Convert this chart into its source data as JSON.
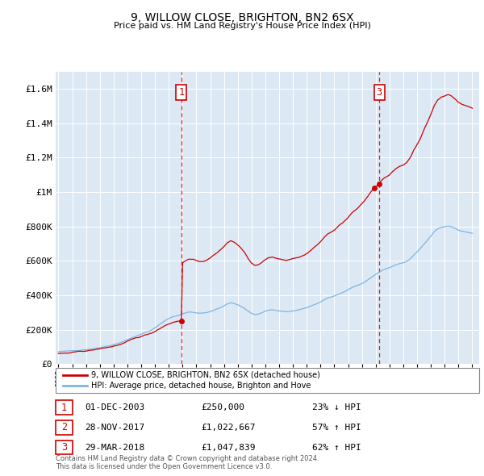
{
  "title": "9, WILLOW CLOSE, BRIGHTON, BN2 6SX",
  "subtitle": "Price paid vs. HM Land Registry's House Price Index (HPI)",
  "background_color": "white",
  "plot_bg_color": "#dce9f5",
  "ylim": [
    0,
    1700000
  ],
  "yticks": [
    0,
    200000,
    400000,
    600000,
    800000,
    1000000,
    1200000,
    1400000,
    1600000
  ],
  "ytick_labels": [
    "£0",
    "£200K",
    "£400K",
    "£600K",
    "£800K",
    "£1M",
    "£1.2M",
    "£1.4M",
    "£1.6M"
  ],
  "hpi_color": "#7eb4e2",
  "price_color": "#cc0000",
  "transaction1_year": 2003.92,
  "transaction1_price": 250000,
  "transaction2_year": 2017.91,
  "transaction2_price": 1022667,
  "transaction3_year": 2018.25,
  "transaction3_price": 1047839,
  "legend_label_price": "9, WILLOW CLOSE, BRIGHTON, BN2 6SX (detached house)",
  "legend_label_hpi": "HPI: Average price, detached house, Brighton and Hove",
  "table_rows": [
    [
      "1",
      "01-DEC-2003",
      "£250,000",
      "23% ↓ HPI"
    ],
    [
      "2",
      "28-NOV-2017",
      "£1,022,667",
      "57% ↑ HPI"
    ],
    [
      "3",
      "29-MAR-2018",
      "£1,047,839",
      "62% ↑ HPI"
    ]
  ],
  "footnote": "Contains HM Land Registry data © Crown copyright and database right 2024.\nThis data is licensed under the Open Government Licence v3.0.",
  "dashed_lines": [
    2003.92,
    2018.25
  ],
  "hpi_base_points": [
    [
      1995.0,
      72000
    ],
    [
      1995.25,
      73500
    ],
    [
      1995.5,
      74000
    ],
    [
      1995.75,
      75000
    ],
    [
      1996.0,
      77000
    ],
    [
      1996.25,
      79000
    ],
    [
      1996.5,
      81000
    ],
    [
      1996.75,
      83000
    ],
    [
      1997.0,
      86000
    ],
    [
      1997.25,
      89000
    ],
    [
      1997.5,
      92000
    ],
    [
      1997.75,
      95000
    ],
    [
      1998.0,
      99000
    ],
    [
      1998.25,
      104000
    ],
    [
      1998.5,
      108000
    ],
    [
      1998.75,
      112000
    ],
    [
      1999.0,
      118000
    ],
    [
      1999.25,
      124000
    ],
    [
      1999.5,
      130000
    ],
    [
      1999.75,
      138000
    ],
    [
      2000.0,
      147000
    ],
    [
      2000.25,
      156000
    ],
    [
      2000.5,
      163000
    ],
    [
      2000.75,
      170000
    ],
    [
      2001.0,
      178000
    ],
    [
      2001.25,
      186000
    ],
    [
      2001.5,
      194000
    ],
    [
      2001.75,
      202000
    ],
    [
      2002.0,
      215000
    ],
    [
      2002.25,
      230000
    ],
    [
      2002.5,
      244000
    ],
    [
      2002.75,
      258000
    ],
    [
      2003.0,
      270000
    ],
    [
      2003.25,
      279000
    ],
    [
      2003.5,
      285000
    ],
    [
      2003.75,
      290000
    ],
    [
      2004.0,
      296000
    ],
    [
      2004.25,
      305000
    ],
    [
      2004.5,
      308000
    ],
    [
      2004.75,
      306000
    ],
    [
      2005.0,
      302000
    ],
    [
      2005.25,
      300000
    ],
    [
      2005.5,
      301000
    ],
    [
      2005.75,
      304000
    ],
    [
      2006.0,
      310000
    ],
    [
      2006.25,
      318000
    ],
    [
      2006.5,
      326000
    ],
    [
      2006.75,
      334000
    ],
    [
      2007.0,
      344000
    ],
    [
      2007.25,
      356000
    ],
    [
      2007.5,
      362000
    ],
    [
      2007.75,
      358000
    ],
    [
      2008.0,
      350000
    ],
    [
      2008.25,
      340000
    ],
    [
      2008.5,
      328000
    ],
    [
      2008.75,
      312000
    ],
    [
      2009.0,
      298000
    ],
    [
      2009.25,
      292000
    ],
    [
      2009.5,
      295000
    ],
    [
      2009.75,
      302000
    ],
    [
      2010.0,
      310000
    ],
    [
      2010.25,
      316000
    ],
    [
      2010.5,
      318000
    ],
    [
      2010.75,
      315000
    ],
    [
      2011.0,
      312000
    ],
    [
      2011.25,
      310000
    ],
    [
      2011.5,
      308000
    ],
    [
      2011.75,
      309000
    ],
    [
      2012.0,
      312000
    ],
    [
      2012.25,
      316000
    ],
    [
      2012.5,
      318000
    ],
    [
      2012.75,
      322000
    ],
    [
      2013.0,
      328000
    ],
    [
      2013.25,
      336000
    ],
    [
      2013.5,
      344000
    ],
    [
      2013.75,
      352000
    ],
    [
      2014.0,
      362000
    ],
    [
      2014.25,
      374000
    ],
    [
      2014.5,
      384000
    ],
    [
      2014.75,
      390000
    ],
    [
      2015.0,
      396000
    ],
    [
      2015.25,
      405000
    ],
    [
      2015.5,
      414000
    ],
    [
      2015.75,
      422000
    ],
    [
      2016.0,
      432000
    ],
    [
      2016.25,
      444000
    ],
    [
      2016.5,
      452000
    ],
    [
      2016.75,
      460000
    ],
    [
      2017.0,
      470000
    ],
    [
      2017.25,
      482000
    ],
    [
      2017.5,
      496000
    ],
    [
      2017.75,
      510000
    ],
    [
      2018.0,
      524000
    ],
    [
      2018.25,
      536000
    ],
    [
      2018.5,
      548000
    ],
    [
      2018.75,
      556000
    ],
    [
      2019.0,
      562000
    ],
    [
      2019.25,
      572000
    ],
    [
      2019.5,
      580000
    ],
    [
      2019.75,
      586000
    ],
    [
      2020.0,
      590000
    ],
    [
      2020.25,
      598000
    ],
    [
      2020.5,
      612000
    ],
    [
      2020.75,
      634000
    ],
    [
      2021.0,
      652000
    ],
    [
      2021.25,
      672000
    ],
    [
      2021.5,
      696000
    ],
    [
      2021.75,
      718000
    ],
    [
      2022.0,
      742000
    ],
    [
      2022.25,
      768000
    ],
    [
      2022.5,
      784000
    ],
    [
      2022.75,
      792000
    ],
    [
      2023.0,
      796000
    ],
    [
      2023.25,
      800000
    ],
    [
      2023.5,
      796000
    ],
    [
      2023.75,
      788000
    ],
    [
      2024.0,
      778000
    ],
    [
      2024.25,
      772000
    ],
    [
      2024.5,
      768000
    ],
    [
      2024.75,
      764000
    ],
    [
      2025.0,
      760000
    ]
  ]
}
